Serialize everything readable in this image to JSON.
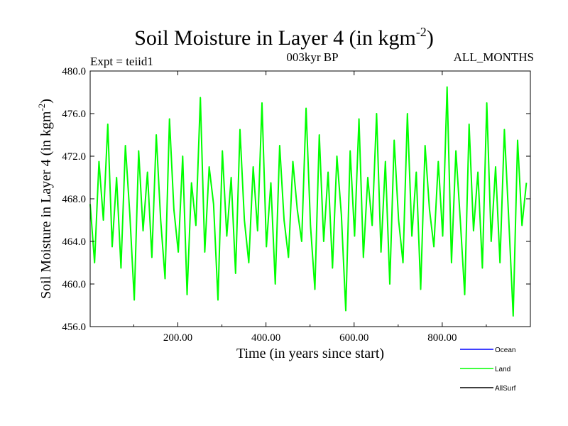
{
  "chart_data": {
    "type": "line",
    "title": "Soil Moisture in Layer 4 (in kgm",
    "title_superscript": "-2",
    "title_suffix": ")",
    "subtitle_left": "Expt = teiid1",
    "subtitle_center": "003kyr BP",
    "subtitle_right": "ALL_MONTHS",
    "xlabel": "Time (in years since start)",
    "ylabel": "Soil Moisture in Layer 4 (in kgm",
    "ylabel_superscript": "-2",
    "ylabel_suffix": ")",
    "xlim": [
      1,
      1000
    ],
    "ylim": [
      456.0,
      480.0
    ],
    "x_ticks": [
      200,
      400,
      600,
      800
    ],
    "x_tick_labels": [
      "200.00",
      "400.00",
      "600.00",
      "800.00"
    ],
    "y_ticks": [
      456,
      460,
      464,
      468,
      472,
      476,
      480
    ],
    "y_tick_labels": [
      "456.0",
      "460.0",
      "464.0",
      "468.0",
      "472.0",
      "476.0",
      "480.0"
    ],
    "series": [
      {
        "name": "Land",
        "color": "#00ff00",
        "x_start": 1,
        "x_step": 10,
        "values": [
          467.5,
          462.0,
          471.5,
          466.0,
          475.0,
          463.5,
          470.0,
          461.5,
          473.0,
          466.5,
          458.5,
          472.5,
          465.0,
          470.5,
          462.5,
          474.0,
          466.0,
          460.5,
          475.5,
          467.0,
          463.0,
          472.0,
          459.0,
          469.5,
          465.5,
          477.5,
          463.0,
          471.0,
          467.5,
          458.5,
          472.5,
          464.5,
          470.0,
          461.0,
          474.5,
          466.0,
          462.0,
          471.0,
          465.0,
          477.0,
          463.5,
          469.5,
          460.0,
          473.0,
          466.0,
          462.5,
          471.5,
          467.0,
          464.0,
          476.5,
          465.5,
          459.5,
          474.0,
          464.0,
          470.5,
          461.5,
          472.0,
          466.5,
          457.5,
          472.5,
          464.5,
          475.5,
          462.5,
          470.0,
          465.5,
          476.0,
          463.0,
          471.5,
          460.0,
          473.5,
          466.0,
          462.0,
          476.0,
          464.5,
          470.5,
          459.5,
          473.0,
          467.0,
          463.5,
          471.5,
          464.5,
          478.5,
          462.0,
          472.5,
          466.0,
          459.0,
          475.0,
          465.0,
          470.5,
          461.5,
          477.0,
          464.0,
          471.0,
          462.0,
          474.5,
          466.0,
          457.0,
          473.5,
          465.5,
          469.5
        ]
      }
    ],
    "legend": {
      "placement": "bottom-right",
      "entries": [
        {
          "label": "Ocean",
          "color": "#0000ff"
        },
        {
          "label": "Land",
          "color": "#00ff00"
        },
        {
          "label": "AllSurf",
          "color": "#000000"
        }
      ]
    },
    "grid": false
  }
}
